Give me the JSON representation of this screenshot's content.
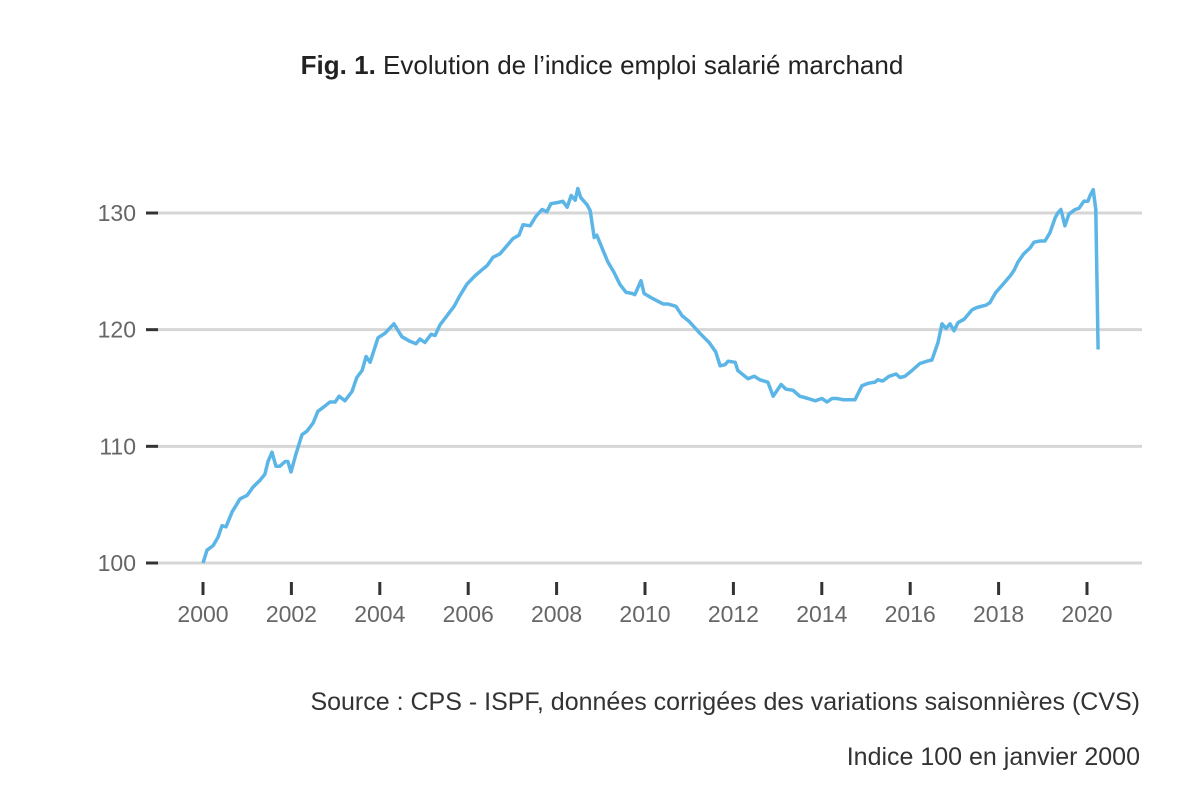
{
  "chart_data": {
    "type": "line",
    "title_prefix": "Fig. 1.",
    "title": "Evolution de l’indice emploi salarié marchand",
    "xlabel": "",
    "ylabel": "",
    "xlim": [
      1999.7,
      2021.2
    ],
    "ylim": [
      99,
      133
    ],
    "x_ticks": [
      2000,
      2002,
      2004,
      2006,
      2008,
      2010,
      2012,
      2014,
      2016,
      2018,
      2020
    ],
    "y_ticks": [
      100,
      110,
      120,
      130
    ],
    "grid": "horizontal",
    "legend": "none",
    "line_color": "#5bb5e6",
    "grid_color": "#d6d6d6",
    "series": [
      {
        "x": [
          2000.0,
          2000.09,
          2000.23,
          2000.34,
          2000.43,
          2000.52,
          2000.66,
          2000.84,
          2001.0,
          2001.13,
          2001.29,
          2001.4,
          2001.47,
          2001.56,
          2001.65,
          2001.74,
          2001.86,
          2001.92,
          2001.99,
          2002.1,
          2002.24,
          2002.35,
          2002.49,
          2002.6,
          2002.74,
          2002.87,
          2002.99,
          2003.08,
          2003.21,
          2003.37,
          2003.48,
          2003.6,
          2003.69,
          2003.78,
          2003.96,
          2004.12,
          2004.32,
          2004.5,
          2004.68,
          2004.82,
          2004.91,
          2005.02,
          2005.16,
          2005.25,
          2005.36,
          2005.52,
          2005.68,
          2005.81,
          2005.97,
          2006.15,
          2006.3,
          2006.43,
          2006.56,
          2006.72,
          2006.9,
          2007.01,
          2007.15,
          2007.24,
          2007.4,
          2007.53,
          2007.67,
          2007.78,
          2007.87,
          2008.03,
          2008.14,
          2008.24,
          2008.33,
          2008.42,
          2008.48,
          2008.55,
          2008.69,
          2008.76,
          2008.85,
          2008.91,
          2009.05,
          2009.16,
          2009.3,
          2009.43,
          2009.57,
          2009.71,
          2009.77,
          2009.91,
          2009.98,
          2010.16,
          2010.41,
          2010.52,
          2010.7,
          2010.84,
          2011.0,
          2011.24,
          2011.45,
          2011.6,
          2011.7,
          2011.81,
          2011.88,
          2012.04,
          2012.1,
          2012.33,
          2012.47,
          2012.6,
          2012.78,
          2012.9,
          2013.08,
          2013.19,
          2013.35,
          2013.5,
          2013.69,
          2013.85,
          2014.0,
          2014.12,
          2014.23,
          2014.34,
          2014.48,
          2014.75,
          2014.91,
          2015.05,
          2015.2,
          2015.27,
          2015.38,
          2015.52,
          2015.68,
          2015.77,
          2015.88,
          2016.04,
          2016.22,
          2016.38,
          2016.49,
          2016.63,
          2016.72,
          2016.81,
          2016.9,
          2016.99,
          2017.08,
          2017.22,
          2017.4,
          2017.51,
          2017.71,
          2017.8,
          2017.94,
          2018.08,
          2018.26,
          2018.35,
          2018.44,
          2018.57,
          2018.71,
          2018.8,
          2018.94,
          2019.05,
          2019.16,
          2019.28,
          2019.34,
          2019.41,
          2019.5,
          2019.59,
          2019.73,
          2019.82,
          2019.93,
          2020.02,
          2020.07,
          2020.14,
          2020.2,
          2020.25
        ],
        "y": [
          100,
          101.1,
          101.5,
          102.2,
          103.2,
          103.1,
          104.4,
          105.5,
          105.8,
          106.5,
          107.1,
          107.6,
          108.7,
          109.5,
          108.3,
          108.3,
          108.7,
          108.7,
          107.8,
          109.3,
          111.0,
          111.3,
          112.0,
          113.0,
          113.4,
          113.8,
          113.8,
          114.3,
          113.9,
          114.7,
          115.9,
          116.5,
          117.7,
          117.2,
          119.3,
          119.7,
          120.5,
          119.4,
          119.0,
          118.8,
          119.2,
          118.9,
          119.6,
          119.5,
          120.4,
          121.2,
          122.0,
          122.9,
          123.9,
          124.6,
          125.1,
          125.5,
          126.2,
          126.5,
          127.3,
          127.8,
          128.1,
          129.0,
          128.9,
          129.7,
          130.3,
          130.1,
          130.8,
          130.9,
          131.0,
          130.5,
          131.5,
          131.1,
          132.1,
          131.3,
          130.7,
          130.2,
          127.9,
          128.1,
          126.8,
          125.8,
          124.9,
          123.9,
          123.2,
          123.1,
          123.0,
          124.2,
          123.1,
          122.7,
          122.2,
          122.2,
          122.0,
          121.2,
          120.7,
          119.7,
          118.9,
          118.1,
          116.9,
          117.0,
          117.3,
          117.2,
          116.5,
          115.8,
          116.0,
          115.7,
          115.5,
          114.3,
          115.3,
          114.9,
          114.8,
          114.3,
          114.1,
          113.9,
          114.1,
          113.8,
          114.1,
          114.1,
          114.0,
          114.0,
          115.2,
          115.4,
          115.5,
          115.7,
          115.6,
          116.0,
          116.2,
          115.9,
          116.0,
          116.5,
          117.1,
          117.3,
          117.4,
          118.9,
          120.5,
          120.1,
          120.5,
          119.9,
          120.6,
          120.9,
          121.7,
          121.9,
          122.1,
          122.3,
          123.2,
          123.8,
          124.6,
          125.1,
          125.8,
          126.5,
          127.0,
          127.5,
          127.6,
          127.6,
          128.3,
          129.6,
          130.0,
          130.3,
          128.9,
          129.9,
          130.3,
          130.4,
          131.0,
          131.0,
          131.5,
          132.0,
          130.3,
          118.3
        ]
      }
    ],
    "notes": [
      "Source : CPS - ISPF, données corrigées des variations saisonnières (CVS)",
      "Indice 100 en janvier 2000"
    ]
  }
}
